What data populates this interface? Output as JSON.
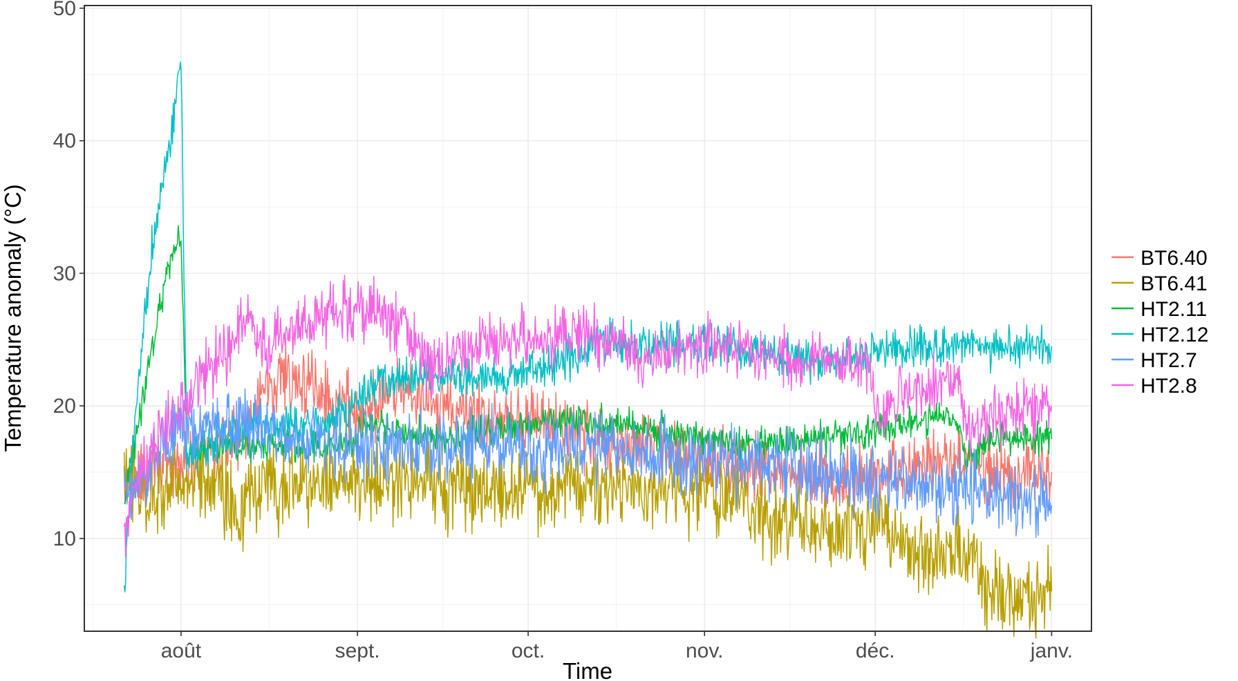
{
  "chart_data": {
    "type": "line",
    "title": "",
    "xlabel": "Time",
    "ylabel": "Temperature anomaly (°C)",
    "ylim": [
      3,
      50.2
    ],
    "y_ticks": [
      "10",
      "20",
      "30",
      "40",
      "50"
    ],
    "y_tick_values": [
      10,
      20,
      30,
      40,
      50
    ],
    "x_ticks": [
      "août",
      "sept.",
      "oct.",
      "nov.",
      "déc.",
      "janv."
    ],
    "x_tick_values": [
      "2017-08-01",
      "2017-09-01",
      "2017-10-01",
      "2017-11-01",
      "2017-12-01",
      "2018-01-01"
    ],
    "xlim": [
      "2017-07-15",
      "2018-01-08"
    ],
    "grid": true,
    "legend_position": "right",
    "series": [
      {
        "name": "BT6.40",
        "color": "#F8766D",
        "noise": 1.2,
        "x": [
          "2017-07-22",
          "2017-07-27",
          "2017-08-01",
          "2017-08-05",
          "2017-08-12",
          "2017-08-16",
          "2017-08-21",
          "2017-08-26",
          "2017-09-01",
          "2017-09-08",
          "2017-09-16",
          "2017-09-24",
          "2017-10-01",
          "2017-10-10",
          "2017-10-18",
          "2017-10-27",
          "2017-11-05",
          "2017-11-14",
          "2017-11-22",
          "2017-12-01",
          "2017-12-10",
          "2017-12-18",
          "2017-12-24",
          "2018-01-01"
        ],
        "y": [
          14,
          15.5,
          15.5,
          16.5,
          18,
          22,
          22,
          21,
          19.5,
          21,
          20,
          19,
          19,
          18,
          17,
          16.5,
          15.5,
          15,
          14.5,
          14.5,
          15.5,
          16,
          15,
          15
        ]
      },
      {
        "name": "BT6.41",
        "color": "#B79F00",
        "noise": 1.5,
        "x": [
          "2017-07-22",
          "2017-07-25",
          "2017-08-01",
          "2017-08-08",
          "2017-08-11",
          "2017-08-16",
          "2017-08-25",
          "2017-09-01",
          "2017-09-10",
          "2017-09-20",
          "2017-10-01",
          "2017-10-12",
          "2017-10-25",
          "2017-11-03",
          "2017-11-10",
          "2017-11-17",
          "2017-11-24",
          "2017-12-02",
          "2017-12-08",
          "2017-12-14",
          "2017-12-19",
          "2017-12-20",
          "2017-12-26",
          "2018-01-01"
        ],
        "y": [
          16,
          13,
          14.5,
          14,
          12,
          14,
          14.5,
          14.5,
          14,
          13.5,
          14,
          13.5,
          14,
          13.5,
          12,
          11,
          10.5,
          11.5,
          8.5,
          9,
          8.5,
          6,
          5.5,
          6
        ]
      },
      {
        "name": "HT2.11",
        "color": "#00BA38",
        "noise": 0.6,
        "x": [
          "2017-07-22",
          "2017-07-25",
          "2017-07-28",
          "2017-07-30",
          "2017-08-01",
          "2017-08-02",
          "2017-08-05",
          "2017-08-15",
          "2017-08-29",
          "2017-09-03",
          "2017-09-15",
          "2017-09-30",
          "2017-10-10",
          "2017-10-25",
          "2017-11-08",
          "2017-11-20",
          "2017-12-01",
          "2017-12-09",
          "2017-12-15",
          "2017-12-17",
          "2017-12-22",
          "2018-01-01"
        ],
        "y": [
          13,
          20,
          27,
          31,
          33,
          16,
          17,
          17,
          17,
          18.5,
          17.5,
          18.5,
          19,
          18,
          17,
          17.5,
          18,
          19,
          19.5,
          16,
          17.5,
          17.5
        ]
      },
      {
        "name": "HT2.12",
        "color": "#00BFC4",
        "noise": 0.8,
        "x": [
          "2017-07-22",
          "2017-07-24",
          "2017-07-27",
          "2017-07-30",
          "2017-08-01",
          "2017-08-02",
          "2017-08-08",
          "2017-08-15",
          "2017-08-25",
          "2017-09-01",
          "2017-09-05",
          "2017-09-15",
          "2017-09-25",
          "2017-10-05",
          "2017-10-15",
          "2017-10-22",
          "2017-11-01",
          "2017-11-10",
          "2017-11-20",
          "2017-12-01",
          "2017-12-15",
          "2018-01-01"
        ],
        "y": [
          6,
          20,
          32,
          40,
          46,
          16,
          17.5,
          19,
          18.5,
          20,
          22,
          22.5,
          22,
          23,
          25,
          24.5,
          25,
          24,
          23.5,
          24,
          24.5,
          24.5
        ]
      },
      {
        "name": "HT2.7",
        "color": "#619CFF",
        "noise": 1.3,
        "x": [
          "2017-07-22",
          "2017-07-27",
          "2017-08-01",
          "2017-08-08",
          "2017-08-15",
          "2017-08-25",
          "2017-09-01",
          "2017-09-15",
          "2017-10-01",
          "2017-10-15",
          "2017-11-01",
          "2017-11-15",
          "2017-12-01",
          "2017-12-15",
          "2018-01-01"
        ],
        "y": [
          13,
          16,
          18,
          19,
          18.5,
          17,
          17,
          17,
          17,
          16.5,
          16,
          15.5,
          14.5,
          14,
          12.5
        ]
      },
      {
        "name": "HT2.8",
        "color": "#F564E3",
        "noise": 1.1,
        "x": [
          "2017-07-22",
          "2017-07-25",
          "2017-07-30",
          "2017-08-01",
          "2017-08-05",
          "2017-08-10",
          "2017-08-13",
          "2017-08-15",
          "2017-08-20",
          "2017-08-27",
          "2017-09-05",
          "2017-09-10",
          "2017-09-13",
          "2017-09-20",
          "2017-10-01",
          "2017-10-10",
          "2017-10-17",
          "2017-10-20",
          "2017-11-01",
          "2017-11-10",
          "2017-11-20",
          "2017-11-30",
          "2017-12-01",
          "2017-12-10",
          "2017-12-16",
          "2017-12-17",
          "2017-12-25",
          "2018-01-01"
        ],
        "y": [
          10,
          15,
          19,
          20,
          22,
          25,
          27,
          24,
          26,
          27,
          27,
          26,
          22.5,
          24.5,
          25,
          25.5,
          25,
          23.5,
          24.5,
          24,
          23.5,
          23,
          19.5,
          21.5,
          22,
          18,
          20,
          20
        ]
      }
    ]
  }
}
